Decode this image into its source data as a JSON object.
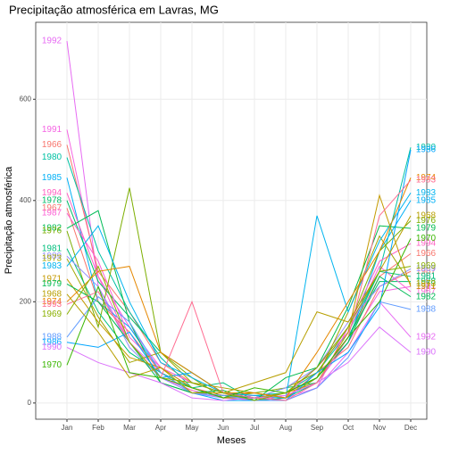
{
  "chart_data": {
    "type": "line",
    "title": "Precipitação atmosférica em Lavras, MG",
    "x_label": "Meses",
    "y_label": "Precipitação atmosférica",
    "categories": [
      "Jan",
      "Feb",
      "Mar",
      "Apr",
      "May",
      "Jun",
      "Jul",
      "Aug",
      "Sep",
      "Oct",
      "Nov",
      "Dec"
    ],
    "ylim": [
      -32,
      752
    ],
    "yticks": [
      0,
      200,
      400,
      600
    ],
    "grid": true,
    "series": [
      {
        "name": "1992",
        "color": "#e76bf3",
        "values": [
          715,
          230,
          120,
          60,
          20,
          10,
          5,
          10,
          30,
          100,
          200,
          130
        ]
      },
      {
        "name": "1991",
        "color": "#f564e3",
        "values": [
          540,
          250,
          150,
          70,
          30,
          15,
          10,
          15,
          40,
          120,
          220,
          230
        ]
      },
      {
        "name": "1966",
        "color": "#f8766d",
        "values": [
          510,
          260,
          180,
          80,
          40,
          20,
          10,
          20,
          50,
          130,
          250,
          295
        ]
      },
      {
        "name": "1980",
        "color": "#00c1a3",
        "values": [
          485,
          300,
          180,
          90,
          30,
          10,
          15,
          20,
          60,
          140,
          260,
          505
        ]
      },
      {
        "name": "1985",
        "color": "#00b0f6",
        "values": [
          445,
          200,
          150,
          60,
          20,
          5,
          5,
          10,
          50,
          120,
          300,
          400
        ]
      },
      {
        "name": "1994",
        "color": "#ff61c3",
        "values": [
          415,
          250,
          120,
          50,
          25,
          10,
          15,
          5,
          30,
          150,
          280,
          315
        ]
      },
      {
        "name": "1978",
        "color": "#00be67",
        "values": [
          400,
          240,
          170,
          100,
          60,
          20,
          10,
          30,
          40,
          130,
          240,
          240
        ]
      },
      {
        "name": "1967",
        "color": "#f8766d",
        "values": [
          385,
          200,
          140,
          60,
          30,
          15,
          20,
          10,
          60,
          110,
          230,
          260
        ]
      },
      {
        "name": "1987",
        "color": "#fc61d5",
        "values": [
          375,
          280,
          130,
          70,
          40,
          20,
          5,
          15,
          70,
          140,
          270,
          220
        ]
      },
      {
        "name": "1982",
        "color": "#00bc56",
        "values": [
          345,
          380,
          160,
          40,
          20,
          15,
          10,
          20,
          50,
          120,
          250,
          210
        ]
      },
      {
        "name": "1976",
        "color": "#7cae00",
        "values": [
          340,
          150,
          425,
          100,
          50,
          10,
          20,
          30,
          60,
          150,
          300,
          360
        ]
      },
      {
        "name": "1981",
        "color": "#00bf7d",
        "values": [
          305,
          180,
          100,
          60,
          30,
          40,
          5,
          10,
          40,
          130,
          260,
          250
        ]
      },
      {
        "name": "1989",
        "color": "#9590ff",
        "values": [
          290,
          230,
          110,
          50,
          20,
          10,
          10,
          30,
          70,
          160,
          230,
          265
        ]
      },
      {
        "name": "1973",
        "color": "#a3a500",
        "values": [
          285,
          170,
          80,
          100,
          40,
          30,
          20,
          10,
          50,
          180,
          330,
          235
        ]
      },
      {
        "name": "1983",
        "color": "#00b4ef",
        "values": [
          270,
          350,
          200,
          80,
          50,
          20,
          15,
          10,
          370,
          180,
          320,
          415
        ]
      },
      {
        "name": "1971",
        "color": "#c49a00",
        "values": [
          245,
          160,
          90,
          70,
          30,
          10,
          10,
          20,
          40,
          140,
          410,
          230
        ]
      },
      {
        "name": "1979",
        "color": "#00bb4e",
        "values": [
          235,
          200,
          120,
          40,
          20,
          25,
          5,
          50,
          70,
          190,
          350,
          345
        ]
      },
      {
        "name": "1988",
        "color": "#619cff",
        "values": [
          130,
          210,
          160,
          60,
          20,
          15,
          5,
          5,
          30,
          90,
          200,
          185
        ]
      },
      {
        "name": "1986",
        "color": "#00a5ff",
        "values": [
          120,
          110,
          140,
          50,
          60,
          20,
          10,
          5,
          60,
          100,
          190,
          500
        ]
      },
      {
        "name": "1990",
        "color": "#db72fb",
        "values": [
          110,
          80,
          60,
          40,
          10,
          5,
          10,
          15,
          40,
          80,
          150,
          100
        ]
      },
      {
        "name": "1974",
        "color": "#e58700",
        "values": [
          200,
          260,
          270,
          100,
          60,
          20,
          20,
          10,
          100,
          200,
          300,
          445
        ]
      },
      {
        "name": "1993",
        "color": "#ff6c91",
        "values": [
          195,
          220,
          120,
          50,
          200,
          20,
          10,
          5,
          40,
          130,
          370,
          440
        ]
      },
      {
        "name": "1968",
        "color": "#b79f00",
        "values": [
          215,
          140,
          50,
          70,
          20,
          20,
          40,
          60,
          180,
          160,
          260,
          370
        ]
      },
      {
        "name": "1970",
        "color": "#39b600",
        "values": [
          75,
          230,
          60,
          50,
          30,
          10,
          30,
          20,
          50,
          130,
          200,
          325
        ]
      },
      {
        "name": "1969",
        "color": "#8ab000",
        "values": [
          175,
          270,
          120,
          50,
          40,
          20,
          5,
          20,
          70,
          150,
          260,
          270
        ]
      }
    ]
  }
}
